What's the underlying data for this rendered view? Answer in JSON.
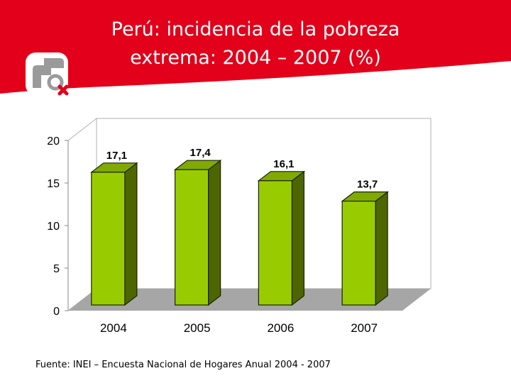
{
  "slide": {
    "title_line1": "Perú: incidencia de la pobreza",
    "title_line2": "extrema: 2004 – 2007 (%)",
    "source": "Fuente: INEI – Encuesta Nacional de Hogares Anual 2004 - 2007"
  },
  "colors": {
    "header_red": "#e2001a",
    "bar_front": "#99cc00",
    "bar_side": "#4d6600",
    "bar_top": "#80aa00",
    "floor": "#a6a6a6",
    "wall": "#ffffff"
  },
  "logo_icon": "gender-female-logo-icon",
  "chart_data": {
    "type": "bar",
    "title": "",
    "xlabel": "",
    "ylabel": "",
    "categories": [
      "2004",
      "2005",
      "2006",
      "2007"
    ],
    "values": [
      17.1,
      17.4,
      16.1,
      13.7
    ],
    "data_labels": [
      "17,1",
      "17,4",
      "16,1",
      "13,7"
    ],
    "yticks": [
      "0",
      "5",
      "10",
      "15",
      "20"
    ],
    "ylim": [
      0,
      20
    ],
    "grid": false,
    "legend": "none",
    "style": "3d-column"
  }
}
